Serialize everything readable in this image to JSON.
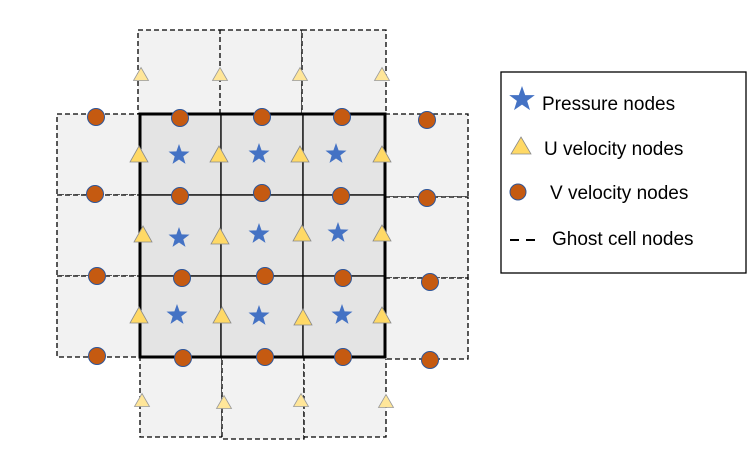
{
  "legend": {
    "pressure_label": "Pressure nodes",
    "u_label": "U velocity nodes",
    "v_label": "V velocity nodes",
    "ghost_label": "Ghost cell nodes"
  },
  "grid": {
    "interior_cells": "3x3",
    "ghost_cells_per_side": 3
  },
  "colors": {
    "pressure": "#4472C4",
    "u_velocity": "#FFD966",
    "u_velocity_ghost": "#FFE699",
    "v_velocity": "#C55A11",
    "v_velocity_stroke": "#2F5597",
    "interior_fill": "#E4E4E4",
    "ghost_fill": "#F2F2F2"
  }
}
